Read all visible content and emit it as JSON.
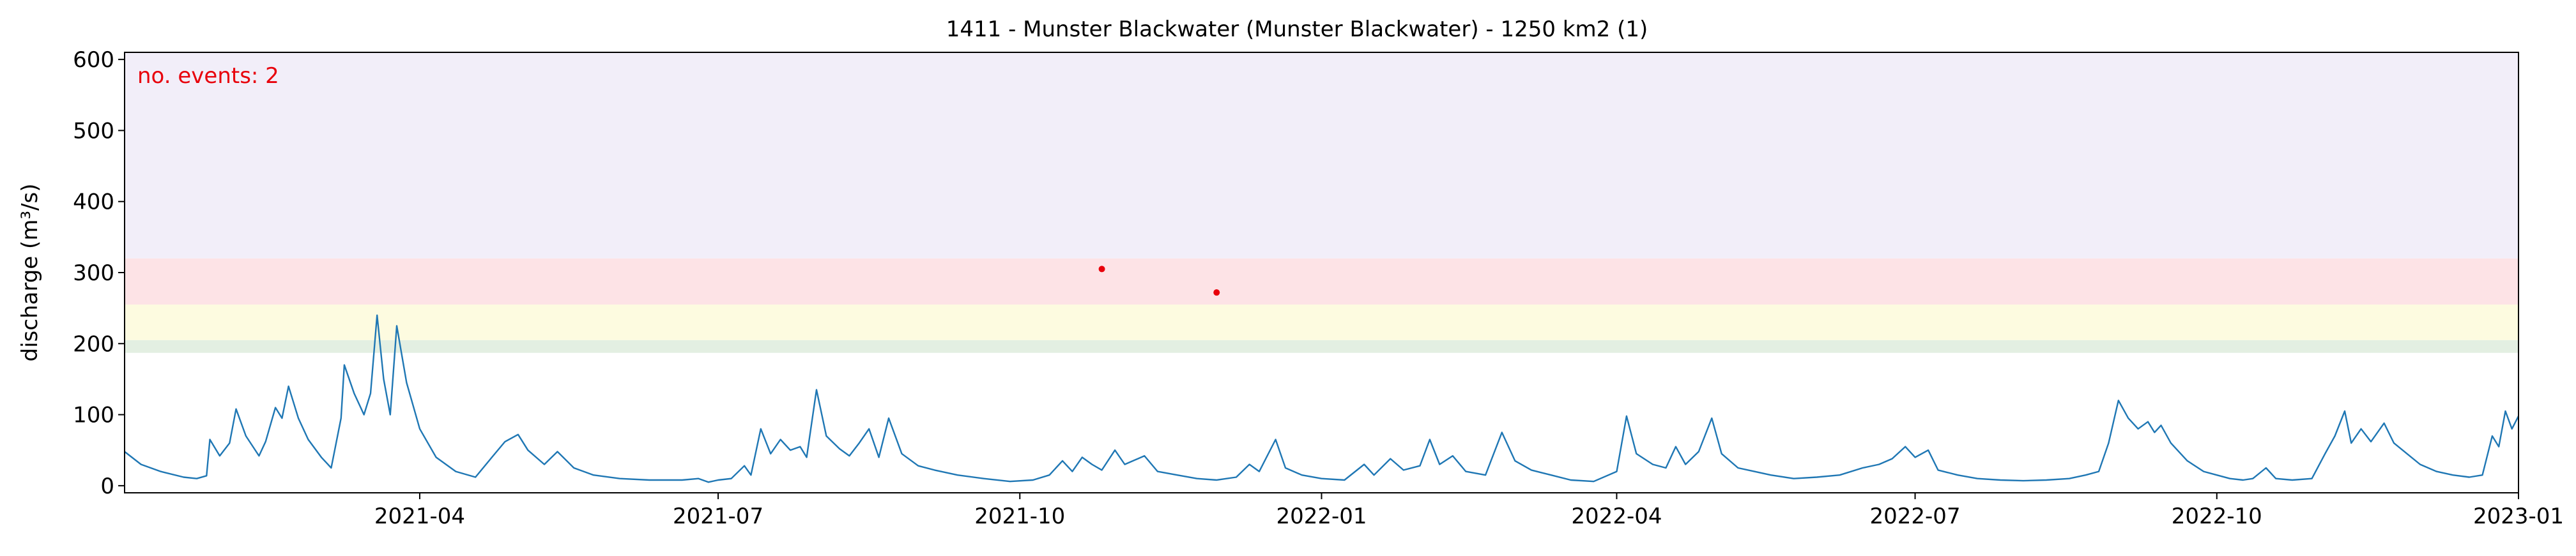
{
  "chart_data": {
    "type": "line",
    "title": "1411 - Munster Blackwater (Munster Blackwater) - 1250 km2 (1)",
    "xlabel": "",
    "ylabel": "discharge (m³/s)",
    "xlim": [
      "2021-01-01",
      "2023-01-01"
    ],
    "ylim": [
      -10,
      610
    ],
    "x_ticks": [
      "2021-04-01",
      "2021-07-01",
      "2021-10-01",
      "2022-01-01",
      "2022-04-01",
      "2022-07-01",
      "2022-10-01",
      "2023-01-01"
    ],
    "x_tick_labels": [
      "2021-04",
      "2021-07",
      "2021-10",
      "2022-01",
      "2022-04",
      "2022-07",
      "2022-10",
      "2023-01"
    ],
    "y_ticks": [
      0,
      100,
      200,
      300,
      400,
      500,
      600
    ],
    "annotation": "no. events: 2",
    "bands": [
      {
        "from": 187,
        "to": 205,
        "color": "#e3efe2"
      },
      {
        "from": 205,
        "to": 255,
        "color": "#fdfbe0"
      },
      {
        "from": 255,
        "to": 320,
        "color": "#fde3e6"
      },
      {
        "from": 320,
        "to": 610,
        "color": "#f2eef9"
      }
    ],
    "series": [
      {
        "color": "#1f77b4",
        "points": [
          [
            "2021-01-01",
            48
          ],
          [
            "2021-01-06",
            30
          ],
          [
            "2021-01-12",
            20
          ],
          [
            "2021-01-19",
            12
          ],
          [
            "2021-01-23",
            10
          ],
          [
            "2021-01-26",
            14
          ],
          [
            "2021-01-27",
            65
          ],
          [
            "2021-01-30",
            42
          ],
          [
            "2021-02-02",
            60
          ],
          [
            "2021-02-04",
            108
          ],
          [
            "2021-02-07",
            70
          ],
          [
            "2021-02-11",
            42
          ],
          [
            "2021-02-13",
            62
          ],
          [
            "2021-02-16",
            110
          ],
          [
            "2021-02-18",
            95
          ],
          [
            "2021-02-20",
            140
          ],
          [
            "2021-02-23",
            95
          ],
          [
            "2021-02-26",
            65
          ],
          [
            "2021-03-02",
            40
          ],
          [
            "2021-03-05",
            25
          ],
          [
            "2021-03-08",
            95
          ],
          [
            "2021-03-09",
            170
          ],
          [
            "2021-03-12",
            130
          ],
          [
            "2021-03-15",
            100
          ],
          [
            "2021-03-17",
            130
          ],
          [
            "2021-03-19",
            240
          ],
          [
            "2021-03-21",
            150
          ],
          [
            "2021-03-23",
            100
          ],
          [
            "2021-03-25",
            225
          ],
          [
            "2021-03-28",
            145
          ],
          [
            "2021-04-01",
            80
          ],
          [
            "2021-04-06",
            40
          ],
          [
            "2021-04-12",
            20
          ],
          [
            "2021-04-18",
            12
          ],
          [
            "2021-04-23",
            40
          ],
          [
            "2021-04-27",
            62
          ],
          [
            "2021-05-01",
            72
          ],
          [
            "2021-05-04",
            50
          ],
          [
            "2021-05-09",
            30
          ],
          [
            "2021-05-13",
            48
          ],
          [
            "2021-05-18",
            25
          ],
          [
            "2021-05-24",
            15
          ],
          [
            "2021-06-01",
            10
          ],
          [
            "2021-06-10",
            8
          ],
          [
            "2021-06-20",
            8
          ],
          [
            "2021-06-25",
            10
          ],
          [
            "2021-06-28",
            5
          ],
          [
            "2021-07-01",
            8
          ],
          [
            "2021-07-05",
            10
          ],
          [
            "2021-07-09",
            28
          ],
          [
            "2021-07-11",
            15
          ],
          [
            "2021-07-14",
            80
          ],
          [
            "2021-07-17",
            45
          ],
          [
            "2021-07-20",
            65
          ],
          [
            "2021-07-23",
            50
          ],
          [
            "2021-07-26",
            55
          ],
          [
            "2021-07-28",
            40
          ],
          [
            "2021-07-31",
            135
          ],
          [
            "2021-08-03",
            70
          ],
          [
            "2021-08-07",
            52
          ],
          [
            "2021-08-10",
            42
          ],
          [
            "2021-08-13",
            60
          ],
          [
            "2021-08-16",
            80
          ],
          [
            "2021-08-19",
            40
          ],
          [
            "2021-08-22",
            95
          ],
          [
            "2021-08-26",
            45
          ],
          [
            "2021-08-31",
            28
          ],
          [
            "2021-09-05",
            22
          ],
          [
            "2021-09-12",
            15
          ],
          [
            "2021-09-20",
            10
          ],
          [
            "2021-09-28",
            6
          ],
          [
            "2021-10-05",
            8
          ],
          [
            "2021-10-10",
            15
          ],
          [
            "2021-10-14",
            35
          ],
          [
            "2021-10-17",
            20
          ],
          [
            "2021-10-20",
            40
          ],
          [
            "2021-10-23",
            30
          ],
          [
            "2021-10-26",
            22
          ],
          [
            "2021-10-30",
            50
          ],
          [
            "2021-11-02",
            30
          ],
          [
            "2021-11-08",
            42
          ],
          [
            "2021-11-12",
            20
          ],
          [
            "2021-11-18",
            15
          ],
          [
            "2021-11-24",
            10
          ],
          [
            "2021-11-30",
            8
          ],
          [
            "2021-12-06",
            12
          ],
          [
            "2021-12-10",
            30
          ],
          [
            "2021-12-13",
            20
          ],
          [
            "2021-12-18",
            65
          ],
          [
            "2021-12-21",
            25
          ],
          [
            "2021-12-26",
            15
          ],
          [
            "2022-01-01",
            10
          ],
          [
            "2022-01-08",
            8
          ],
          [
            "2022-01-14",
            30
          ],
          [
            "2022-01-17",
            15
          ],
          [
            "2022-01-22",
            38
          ],
          [
            "2022-01-26",
            22
          ],
          [
            "2022-01-31",
            28
          ],
          [
            "2022-02-03",
            65
          ],
          [
            "2022-02-06",
            30
          ],
          [
            "2022-02-10",
            42
          ],
          [
            "2022-02-14",
            20
          ],
          [
            "2022-02-20",
            15
          ],
          [
            "2022-02-25",
            75
          ],
          [
            "2022-03-01",
            35
          ],
          [
            "2022-03-06",
            22
          ],
          [
            "2022-03-12",
            15
          ],
          [
            "2022-03-18",
            8
          ],
          [
            "2022-03-25",
            6
          ],
          [
            "2022-04-01",
            20
          ],
          [
            "2022-04-04",
            98
          ],
          [
            "2022-04-07",
            45
          ],
          [
            "2022-04-12",
            30
          ],
          [
            "2022-04-16",
            25
          ],
          [
            "2022-04-19",
            55
          ],
          [
            "2022-04-22",
            30
          ],
          [
            "2022-04-26",
            48
          ],
          [
            "2022-04-30",
            95
          ],
          [
            "2022-05-03",
            45
          ],
          [
            "2022-05-08",
            25
          ],
          [
            "2022-05-13",
            20
          ],
          [
            "2022-05-18",
            15
          ],
          [
            "2022-05-25",
            10
          ],
          [
            "2022-06-01",
            12
          ],
          [
            "2022-06-08",
            15
          ],
          [
            "2022-06-15",
            25
          ],
          [
            "2022-06-20",
            30
          ],
          [
            "2022-06-24",
            38
          ],
          [
            "2022-06-28",
            55
          ],
          [
            "2022-07-01",
            40
          ],
          [
            "2022-07-05",
            50
          ],
          [
            "2022-07-08",
            22
          ],
          [
            "2022-07-14",
            15
          ],
          [
            "2022-07-20",
            10
          ],
          [
            "2022-07-27",
            8
          ],
          [
            "2022-08-03",
            7
          ],
          [
            "2022-08-10",
            8
          ],
          [
            "2022-08-17",
            10
          ],
          [
            "2022-08-22",
            15
          ],
          [
            "2022-08-26",
            20
          ],
          [
            "2022-08-29",
            60
          ],
          [
            "2022-09-01",
            120
          ],
          [
            "2022-09-04",
            95
          ],
          [
            "2022-09-07",
            80
          ],
          [
            "2022-09-10",
            90
          ],
          [
            "2022-09-12",
            75
          ],
          [
            "2022-09-14",
            85
          ],
          [
            "2022-09-17",
            60
          ],
          [
            "2022-09-22",
            35
          ],
          [
            "2022-09-27",
            20
          ],
          [
            "2022-10-01",
            15
          ],
          [
            "2022-10-05",
            10
          ],
          [
            "2022-10-09",
            8
          ],
          [
            "2022-10-12",
            10
          ],
          [
            "2022-10-16",
            25
          ],
          [
            "2022-10-19",
            10
          ],
          [
            "2022-10-24",
            8
          ],
          [
            "2022-10-30",
            10
          ],
          [
            "2022-11-03",
            45
          ],
          [
            "2022-11-06",
            70
          ],
          [
            "2022-11-09",
            105
          ],
          [
            "2022-11-11",
            60
          ],
          [
            "2022-11-14",
            80
          ],
          [
            "2022-11-17",
            62
          ],
          [
            "2022-11-21",
            88
          ],
          [
            "2022-11-24",
            60
          ],
          [
            "2022-11-28",
            45
          ],
          [
            "2022-12-02",
            30
          ],
          [
            "2022-12-07",
            20
          ],
          [
            "2022-12-12",
            15
          ],
          [
            "2022-12-17",
            12
          ],
          [
            "2022-12-21",
            15
          ],
          [
            "2022-12-24",
            70
          ],
          [
            "2022-12-26",
            55
          ],
          [
            "2022-12-28",
            105
          ],
          [
            "2022-12-30",
            80
          ],
          [
            "2023-01-01",
            98
          ]
        ]
      }
    ],
    "events": [
      {
        "x": "2021-10-26",
        "y": 305
      },
      {
        "x": "2021-11-30",
        "y": 272
      }
    ]
  }
}
